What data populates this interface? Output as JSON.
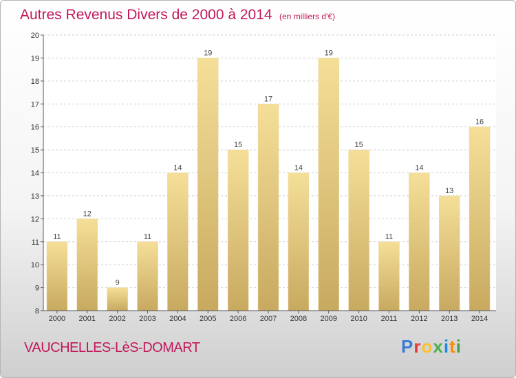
{
  "header": {
    "title": "Autres Revenus Divers de 2000 à 2014",
    "subtitle": "(en milliers d'€)"
  },
  "footer": {
    "commune": "VAUCHELLES-LèS-DOMART",
    "logo": "Proxiti",
    "logo_colors": [
      "#3a7bd5",
      "#e53935",
      "#fbc02d",
      "#4caf50",
      "#1e88e5",
      "#fb8c00",
      "#43a047"
    ]
  },
  "colors": {
    "bar_top": "#f5df98",
    "bar_bottom": "#c8a960",
    "grid": "#cfcfcf",
    "axis": "#555555",
    "title": "#c2185b"
  },
  "chart_data": {
    "type": "bar",
    "title": "Autres Revenus Divers de 2000 à 2014",
    "xlabel": "",
    "ylabel": "",
    "categories": [
      "2000",
      "2001",
      "2002",
      "2003",
      "2004",
      "2005",
      "2006",
      "2007",
      "2008",
      "2009",
      "2010",
      "2011",
      "2012",
      "2013",
      "2014"
    ],
    "values": [
      11,
      12,
      9,
      11,
      14,
      19,
      15,
      17,
      14,
      19,
      15,
      11,
      14,
      13,
      16
    ],
    "ylim": [
      8,
      20
    ],
    "yticks": [
      8,
      9,
      10,
      11,
      12,
      13,
      14,
      15,
      16,
      17,
      18,
      19,
      20
    ],
    "grid": true,
    "legend": "none"
  }
}
